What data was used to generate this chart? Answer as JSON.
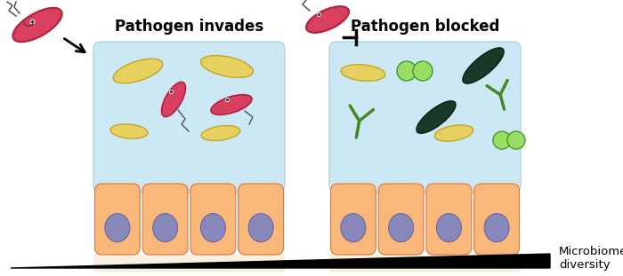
{
  "title_left": "Pathogen invades",
  "title_right": "Pathogen blocked",
  "bg_color": "#ffffff",
  "box_fill": "#cce8f4",
  "box_edge": "#aaccdd",
  "cell_fill_top": "#f9b87a",
  "cell_fill_bot": "#f0955a",
  "cell_edge": "#d87840",
  "nucleus_fill": "#8888bb",
  "nucleus_edge": "#6666aa",
  "pathogen_fill": "#d94060",
  "pathogen_edge": "#b02040",
  "bact_yellow_fill": "#e8d060",
  "bact_yellow_edge": "#c0a820",
  "bact_green_fill": "#88cc55",
  "bact_green_edge": "#448822",
  "bact_dark_fill": "#1a3a28",
  "bact_dark_edge": "#0a1a10",
  "bact_ltgreen_fill": "#99dd66",
  "bact_ltgreen_edge": "#449922",
  "shadow_color": "#f0e0c0",
  "title_fontsize": 12,
  "label_fontsize": 9.5
}
